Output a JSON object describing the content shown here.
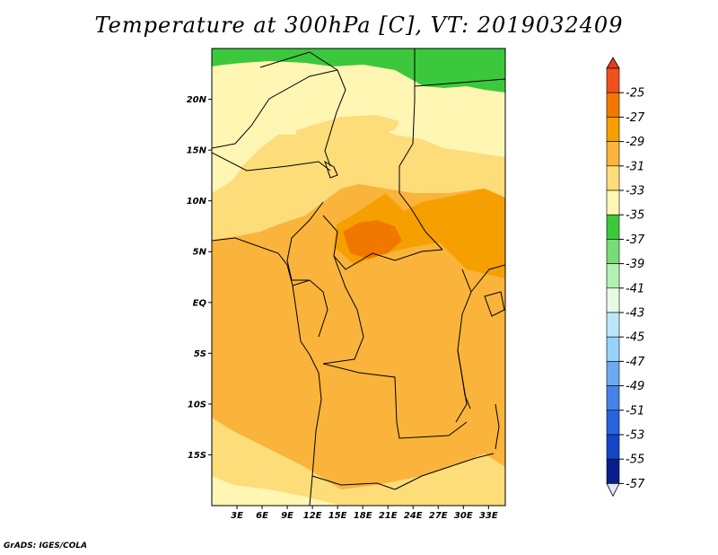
{
  "title": "Temperature at 300hPa [C], VT: 2019032409",
  "credit": "GrADS: IGES/COLA",
  "map": {
    "lon_range": [
      0,
      35
    ],
    "lat_range": [
      -20,
      25
    ],
    "x_ticks": [
      {
        "lon": 3,
        "label": "3E"
      },
      {
        "lon": 6,
        "label": "6E"
      },
      {
        "lon": 9,
        "label": "9E"
      },
      {
        "lon": 12,
        "label": "12E"
      },
      {
        "lon": 15,
        "label": "15E"
      },
      {
        "lon": 18,
        "label": "18E"
      },
      {
        "lon": 21,
        "label": "21E"
      },
      {
        "lon": 24,
        "label": "24E"
      },
      {
        "lon": 27,
        "label": "27E"
      },
      {
        "lon": 30,
        "label": "30E"
      },
      {
        "lon": 33,
        "label": "33E"
      }
    ],
    "y_ticks": [
      {
        "lat": 20,
        "label": "20N"
      },
      {
        "lat": 15,
        "label": "15N"
      },
      {
        "lat": 10,
        "label": "10N"
      },
      {
        "lat": 5,
        "label": "5N"
      },
      {
        "lat": 0,
        "label": "EQ"
      },
      {
        "lat": -5,
        "label": "5S"
      },
      {
        "lat": -10,
        "label": "10S"
      },
      {
        "lat": -15,
        "label": "15S"
      }
    ]
  },
  "colorbar": {
    "levels": [
      {
        "label": "-25",
        "color": "#f0501e"
      },
      {
        "label": "-27",
        "color": "#f07800"
      },
      {
        "label": "-29",
        "color": "#f5a000"
      },
      {
        "label": "-31",
        "color": "#fab43c"
      },
      {
        "label": "-33",
        "color": "#fddc7a"
      },
      {
        "label": "-35",
        "color": "#fff6b4"
      },
      {
        "label": "-37",
        "color": "#3cc83c"
      },
      {
        "label": "-39",
        "color": "#78dc78"
      },
      {
        "label": "-41",
        "color": "#b4f0b4"
      },
      {
        "label": "-43",
        "color": "#e6fae6"
      },
      {
        "label": "-45",
        "color": "#bee6fa"
      },
      {
        "label": "-47",
        "color": "#96d2fa"
      },
      {
        "label": "-49",
        "color": "#6eaaf0"
      },
      {
        "label": "-51",
        "color": "#4682e6"
      },
      {
        "label": "-53",
        "color": "#2864dc"
      },
      {
        "label": "-55",
        "color": "#1446c8"
      },
      {
        "label": "-57",
        "color": "#0a1e8c"
      }
    ],
    "top_color": "#e63c1e",
    "bottom_color": "#e6e6fa"
  }
}
